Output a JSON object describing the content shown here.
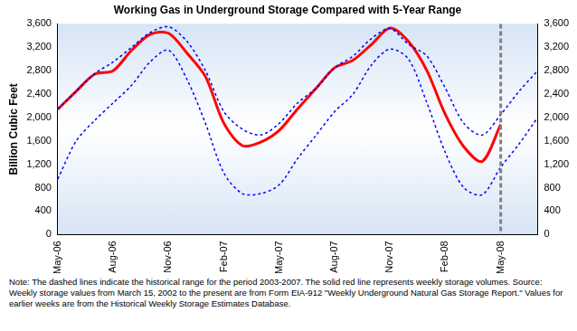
{
  "chart_data": {
    "type": "line",
    "title": "Working Gas in Underground Storage Compared with 5-Year Range",
    "y_label": "Billion Cubic Feet",
    "note": "Note:   The dashed lines indicate the historical range for the period 2003-2007.  The solid red line represents weekly storage volumes.  Source:  Weekly storage values from March 15, 2002 to the present are from Form EIA-912 \"Weekly Underground Natural Gas Storage Report.\"  Values for earlier weeks are from the Historical Weekly Storage Estimates Database.",
    "categories": [
      "May-06",
      null,
      null,
      "Aug-06",
      null,
      null,
      "Nov-06",
      null,
      null,
      "Feb-07",
      null,
      null,
      "May-07",
      null,
      null,
      "Aug-07",
      null,
      null,
      "Nov-07",
      null,
      null,
      "Feb-08",
      null,
      null,
      "May-08",
      null,
      null
    ],
    "series": [
      {
        "color": "#0000ff",
        "line_style": "dashed",
        "values": [
          2150,
          2450,
          2750,
          2950,
          3200,
          3450,
          3550,
          3300,
          2800,
          2100,
          1800,
          1700,
          1900,
          2250,
          2500,
          2850,
          3050,
          3350,
          3520,
          3250,
          3050,
          2500,
          1900,
          1700,
          2050,
          2450,
          2800
        ]
      },
      {
        "color": "#0000ff",
        "line_style": "dashed",
        "values": [
          950,
          1600,
          1950,
          2250,
          2550,
          2950,
          3150,
          2650,
          1900,
          1050,
          700,
          700,
          850,
          1300,
          1700,
          2100,
          2400,
          2900,
          3170,
          3000,
          2250,
          1400,
          800,
          680,
          1150,
          1550,
          2000
        ]
      },
      {
        "color": "#ff0000",
        "line_style": "solid",
        "values": [
          2140,
          2450,
          2740,
          2800,
          3150,
          3420,
          3440,
          3100,
          2700,
          1900,
          1520,
          1580,
          1780,
          2150,
          2500,
          2850,
          2980,
          3250,
          3530,
          3300,
          2800,
          2050,
          1500,
          1250,
          1880,
          null,
          null
        ]
      }
    ],
    "vertical_line": {
      "x": "May-08",
      "color": "#808080",
      "line_style": "dashed"
    },
    "ylim": [
      0,
      3600
    ],
    "yticks": [
      0,
      400,
      800,
      {
        "value": 1200,
        "label": "1,200"
      },
      {
        "value": 1600,
        "label": "1,600"
      },
      {
        "value": 2000,
        "label": "2,000"
      },
      {
        "value": 2400,
        "label": "2,400"
      },
      {
        "value": 2800,
        "label": "2,800"
      },
      {
        "value": 3200,
        "label": "3,200"
      },
      {
        "value": 3600,
        "label": "3,600"
      }
    ],
    "y2lim": [
      0,
      3600
    ],
    "y2ticks": [
      0,
      400,
      800,
      {
        "value": 1200,
        "label": "1,200"
      },
      {
        "value": 1600,
        "label": "1,600"
      },
      {
        "value": 2000,
        "label": "2,000"
      },
      {
        "value": 2400,
        "label": "2,400"
      },
      {
        "value": 2800,
        "label": "2,800"
      },
      {
        "value": 3200,
        "label": "3,200"
      },
      {
        "value": 3600,
        "label": "3,600"
      }
    ],
    "grid": false
  }
}
